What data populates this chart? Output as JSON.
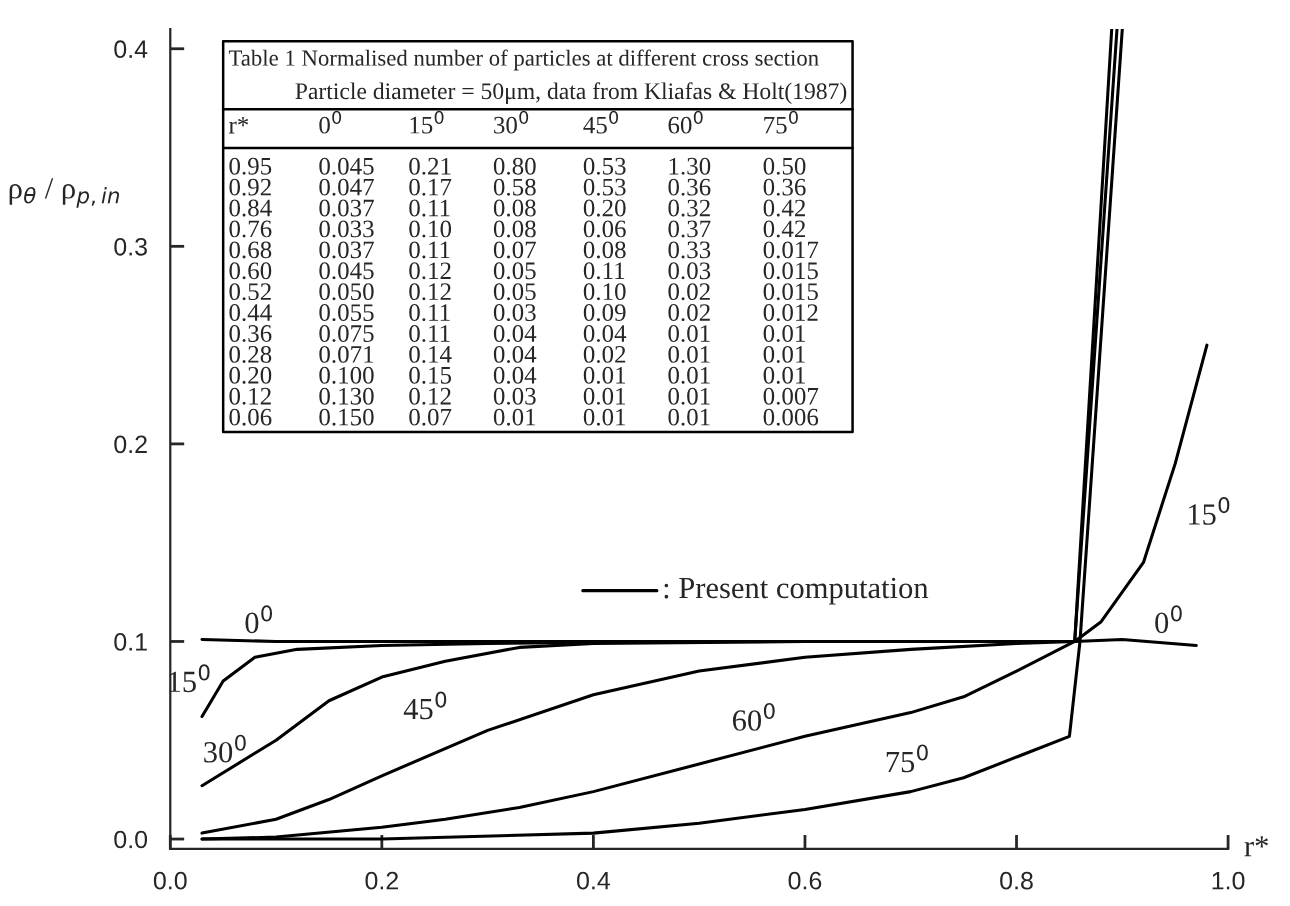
{
  "chart_data": {
    "type": "line",
    "xlabel": "r*",
    "ylabel": "ρ$_{θ}$ / ρ$_{p,in}$",
    "xlim": [
      0,
      1.0
    ],
    "ylim": [
      -0.005,
      0.41
    ],
    "xticks": [
      {
        "value": 0,
        "label": "0.0"
      },
      0.2,
      0.4,
      0.6,
      0.8,
      {
        "value": 1.0,
        "label": "1.0"
      }
    ],
    "yticks": [
      {
        "value": 0,
        "label": "0.0"
      },
      0.1,
      0.2,
      0.3,
      0.4
    ],
    "grid": false,
    "marker": "none",
    "line_style": "solid",
    "series": [
      {
        "color": "#000000",
        "x": [
          0.03,
          0.1,
          0.2,
          0.4,
          0.6,
          0.8,
          0.855,
          0.9,
          0.97
        ],
        "values": [
          0.101,
          0.1,
          0.1,
          0.1,
          0.1,
          0.1,
          0.1,
          0.101,
          0.098
        ]
      },
      {
        "color": "#000000",
        "x": [
          0.03,
          0.05,
          0.08,
          0.12,
          0.2,
          0.3,
          0.5,
          0.7,
          0.855,
          0.88,
          0.92,
          0.95,
          0.98
        ],
        "values": [
          0.062,
          0.08,
          0.092,
          0.096,
          0.098,
          0.099,
          0.1,
          0.1,
          0.1,
          0.11,
          0.14,
          0.19,
          0.25
        ]
      },
      {
        "color": "#000000",
        "x": [
          0.03,
          0.1,
          0.15,
          0.2,
          0.26,
          0.33,
          0.4,
          0.6,
          0.855
        ],
        "values": [
          0.027,
          0.05,
          0.07,
          0.082,
          0.09,
          0.097,
          0.099,
          0.1,
          0.1
        ]
      },
      {
        "color": "#000000",
        "x": [
          0.03,
          0.1,
          0.15,
          0.2,
          0.3,
          0.4,
          0.5,
          0.6,
          0.7,
          0.8,
          0.855,
          0.89
        ],
        "values": [
          0.003,
          0.01,
          0.02,
          0.032,
          0.055,
          0.073,
          0.085,
          0.092,
          0.096,
          0.099,
          0.1,
          0.41
        ]
      },
      {
        "color": "#000000",
        "x": [
          0.03,
          0.1,
          0.2,
          0.26,
          0.33,
          0.4,
          0.5,
          0.6,
          0.7,
          0.75,
          0.8,
          0.855,
          0.895
        ],
        "values": [
          0.0,
          0.001,
          0.006,
          0.01,
          0.016,
          0.024,
          0.038,
          0.052,
          0.064,
          0.072,
          0.085,
          0.1,
          0.41
        ]
      },
      {
        "color": "#000000",
        "x": [
          0.03,
          0.2,
          0.4,
          0.5,
          0.6,
          0.7,
          0.75,
          0.85,
          0.86,
          0.9
        ],
        "values": [
          0.0,
          0.0,
          0.003,
          0.008,
          0.015,
          0.024,
          0.031,
          0.052,
          0.1,
          0.41
        ]
      }
    ],
    "annotations": [
      {
        "text": "0$^{0}$",
        "x": 0.1,
        "y": 0.1
      },
      {
        "text": "0$^{0}$",
        "x": 0.93,
        "y": 0.1
      },
      {
        "text": "15$^{0}$",
        "x": 0.05,
        "y": 0.08
      },
      {
        "text": "15$^{0}$",
        "x": 0.95,
        "y": 0.19
      },
      {
        "text": "30$^{0}$",
        "x": 0.1,
        "y": 0.05
      },
      {
        "text": "45$^{0}$",
        "x": 0.3,
        "y": 0.055
      },
      {
        "text": "60$^{0}$",
        "x": 0.6,
        "y": 0.052
      },
      {
        "text": "75$^{0}$",
        "x": 0.75,
        "y": 0.031
      },
      "Table 1 Normalised number of particles at different cross section",
      "Particle diameter = 50μm, data from Kliafas & Holt(1987)",
      "r* 0$^{0}$ 15$^{0}$ 30$^{0}$ 45$^{0}$ 60$^{0}$ 75$^{0}$",
      "0.95 0.045 0.21 0.80 0.53 1.30 0.50",
      "0.92 0.047 0.17 0.58 0.53 0.36 0.36",
      "0.84 0.037 0.11 0.08 0.20 0.32 0.42",
      "0.76 0.033 0.10 0.08 0.06 0.37 0.42",
      "0.68 0.037 0.11 0.07 0.08 0.33 0.017",
      "0.60 0.045 0.12 0.05 0.11 0.03 0.015",
      "0.52 0.050 0.12 0.05 0.10 0.02 0.015",
      "0.44 0.055 0.11 0.03 0.09 0.02 0.012",
      "0.36 0.075 0.11 0.04 0.04 0.01 0.01",
      "0.28 0.071 0.14 0.04 0.02 0.01 0.01",
      "0.20 0.100 0.15 0.04 0.01 0.01 0.01",
      "0.12 0.130 0.12 0.03 0.01 0.01 0.007",
      "0.06 0.150 0.07 0.01 0.01 0.01 0.006",
      ": Present computation"
    ]
  }
}
